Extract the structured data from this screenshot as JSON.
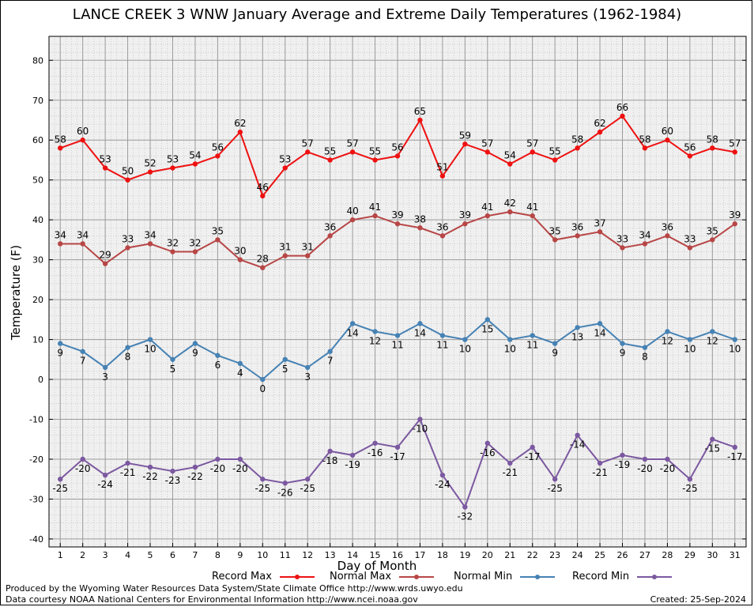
{
  "colors": {
    "record_max": "#ee1111",
    "normal_max": "#b84646",
    "normal_min": "#4682b4",
    "record_min": "#7b58a0",
    "grid": "#9a9a9a",
    "plot_bg": "#f0f0f0"
  },
  "footer": {
    "credit_line1": "Produced by the Wyoming Water Resources Data System/State Climate Office http://www.wrds.uwyo.edu",
    "credit_line2": "Data courtesy NOAA National Centers for Environmental Information http://www.ncei.noaa.gov",
    "created": "Created:  25-Sep-2024"
  },
  "chart_data": {
    "type": "line",
    "title": "LANCE CREEK 3 WNW January Average and Extreme Daily Temperatures (1962-1984)",
    "xlabel": "Day of Month",
    "ylabel": "Temperature (F)",
    "xlim": [
      0.5,
      31.5
    ],
    "ylim": [
      -42,
      86
    ],
    "yticks": [
      -40,
      -30,
      -20,
      -10,
      0,
      10,
      20,
      30,
      40,
      50,
      60,
      70,
      80
    ],
    "x": [
      1,
      2,
      3,
      4,
      5,
      6,
      7,
      8,
      9,
      10,
      11,
      12,
      13,
      14,
      15,
      16,
      17,
      18,
      19,
      20,
      21,
      22,
      23,
      24,
      25,
      26,
      27,
      28,
      29,
      30,
      31
    ],
    "grid": true,
    "legend_position": "bottom",
    "series": [
      {
        "name": "Record Max",
        "color_key": "record_max",
        "label_side": "above",
        "values": [
          58,
          60,
          53,
          50,
          52,
          53,
          54,
          56,
          62,
          46,
          53,
          57,
          55,
          57,
          55,
          56,
          65,
          51,
          59,
          57,
          54,
          57,
          55,
          58,
          62,
          66,
          58,
          60,
          56,
          58,
          57
        ]
      },
      {
        "name": "Normal Max",
        "color_key": "normal_max",
        "label_side": "above",
        "values": [
          34,
          34,
          29,
          33,
          34,
          32,
          32,
          35,
          30,
          28,
          31,
          31,
          36,
          40,
          41,
          39,
          38,
          36,
          39,
          41,
          42,
          41,
          35,
          36,
          37,
          33,
          34,
          36,
          33,
          35,
          39
        ]
      },
      {
        "name": "Normal Min",
        "color_key": "normal_min",
        "label_side": "below",
        "values": [
          9,
          7,
          3,
          8,
          10,
          5,
          9,
          6,
          4,
          0,
          5,
          3,
          7,
          14,
          12,
          11,
          14,
          11,
          10,
          15,
          10,
          11,
          9,
          13,
          14,
          9,
          8,
          12,
          10,
          12,
          10
        ]
      },
      {
        "name": "Record Min",
        "color_key": "record_min",
        "label_side": "below",
        "values": [
          -25,
          -20,
          -24,
          -21,
          -22,
          -23,
          -22,
          -20,
          -20,
          -25,
          -26,
          -25,
          -18,
          -19,
          -16,
          -17,
          -10,
          -24,
          -32,
          -16,
          -21,
          -17,
          -25,
          -14,
          -21,
          -19,
          -20,
          -20,
          -25,
          -15,
          -17
        ]
      }
    ]
  }
}
